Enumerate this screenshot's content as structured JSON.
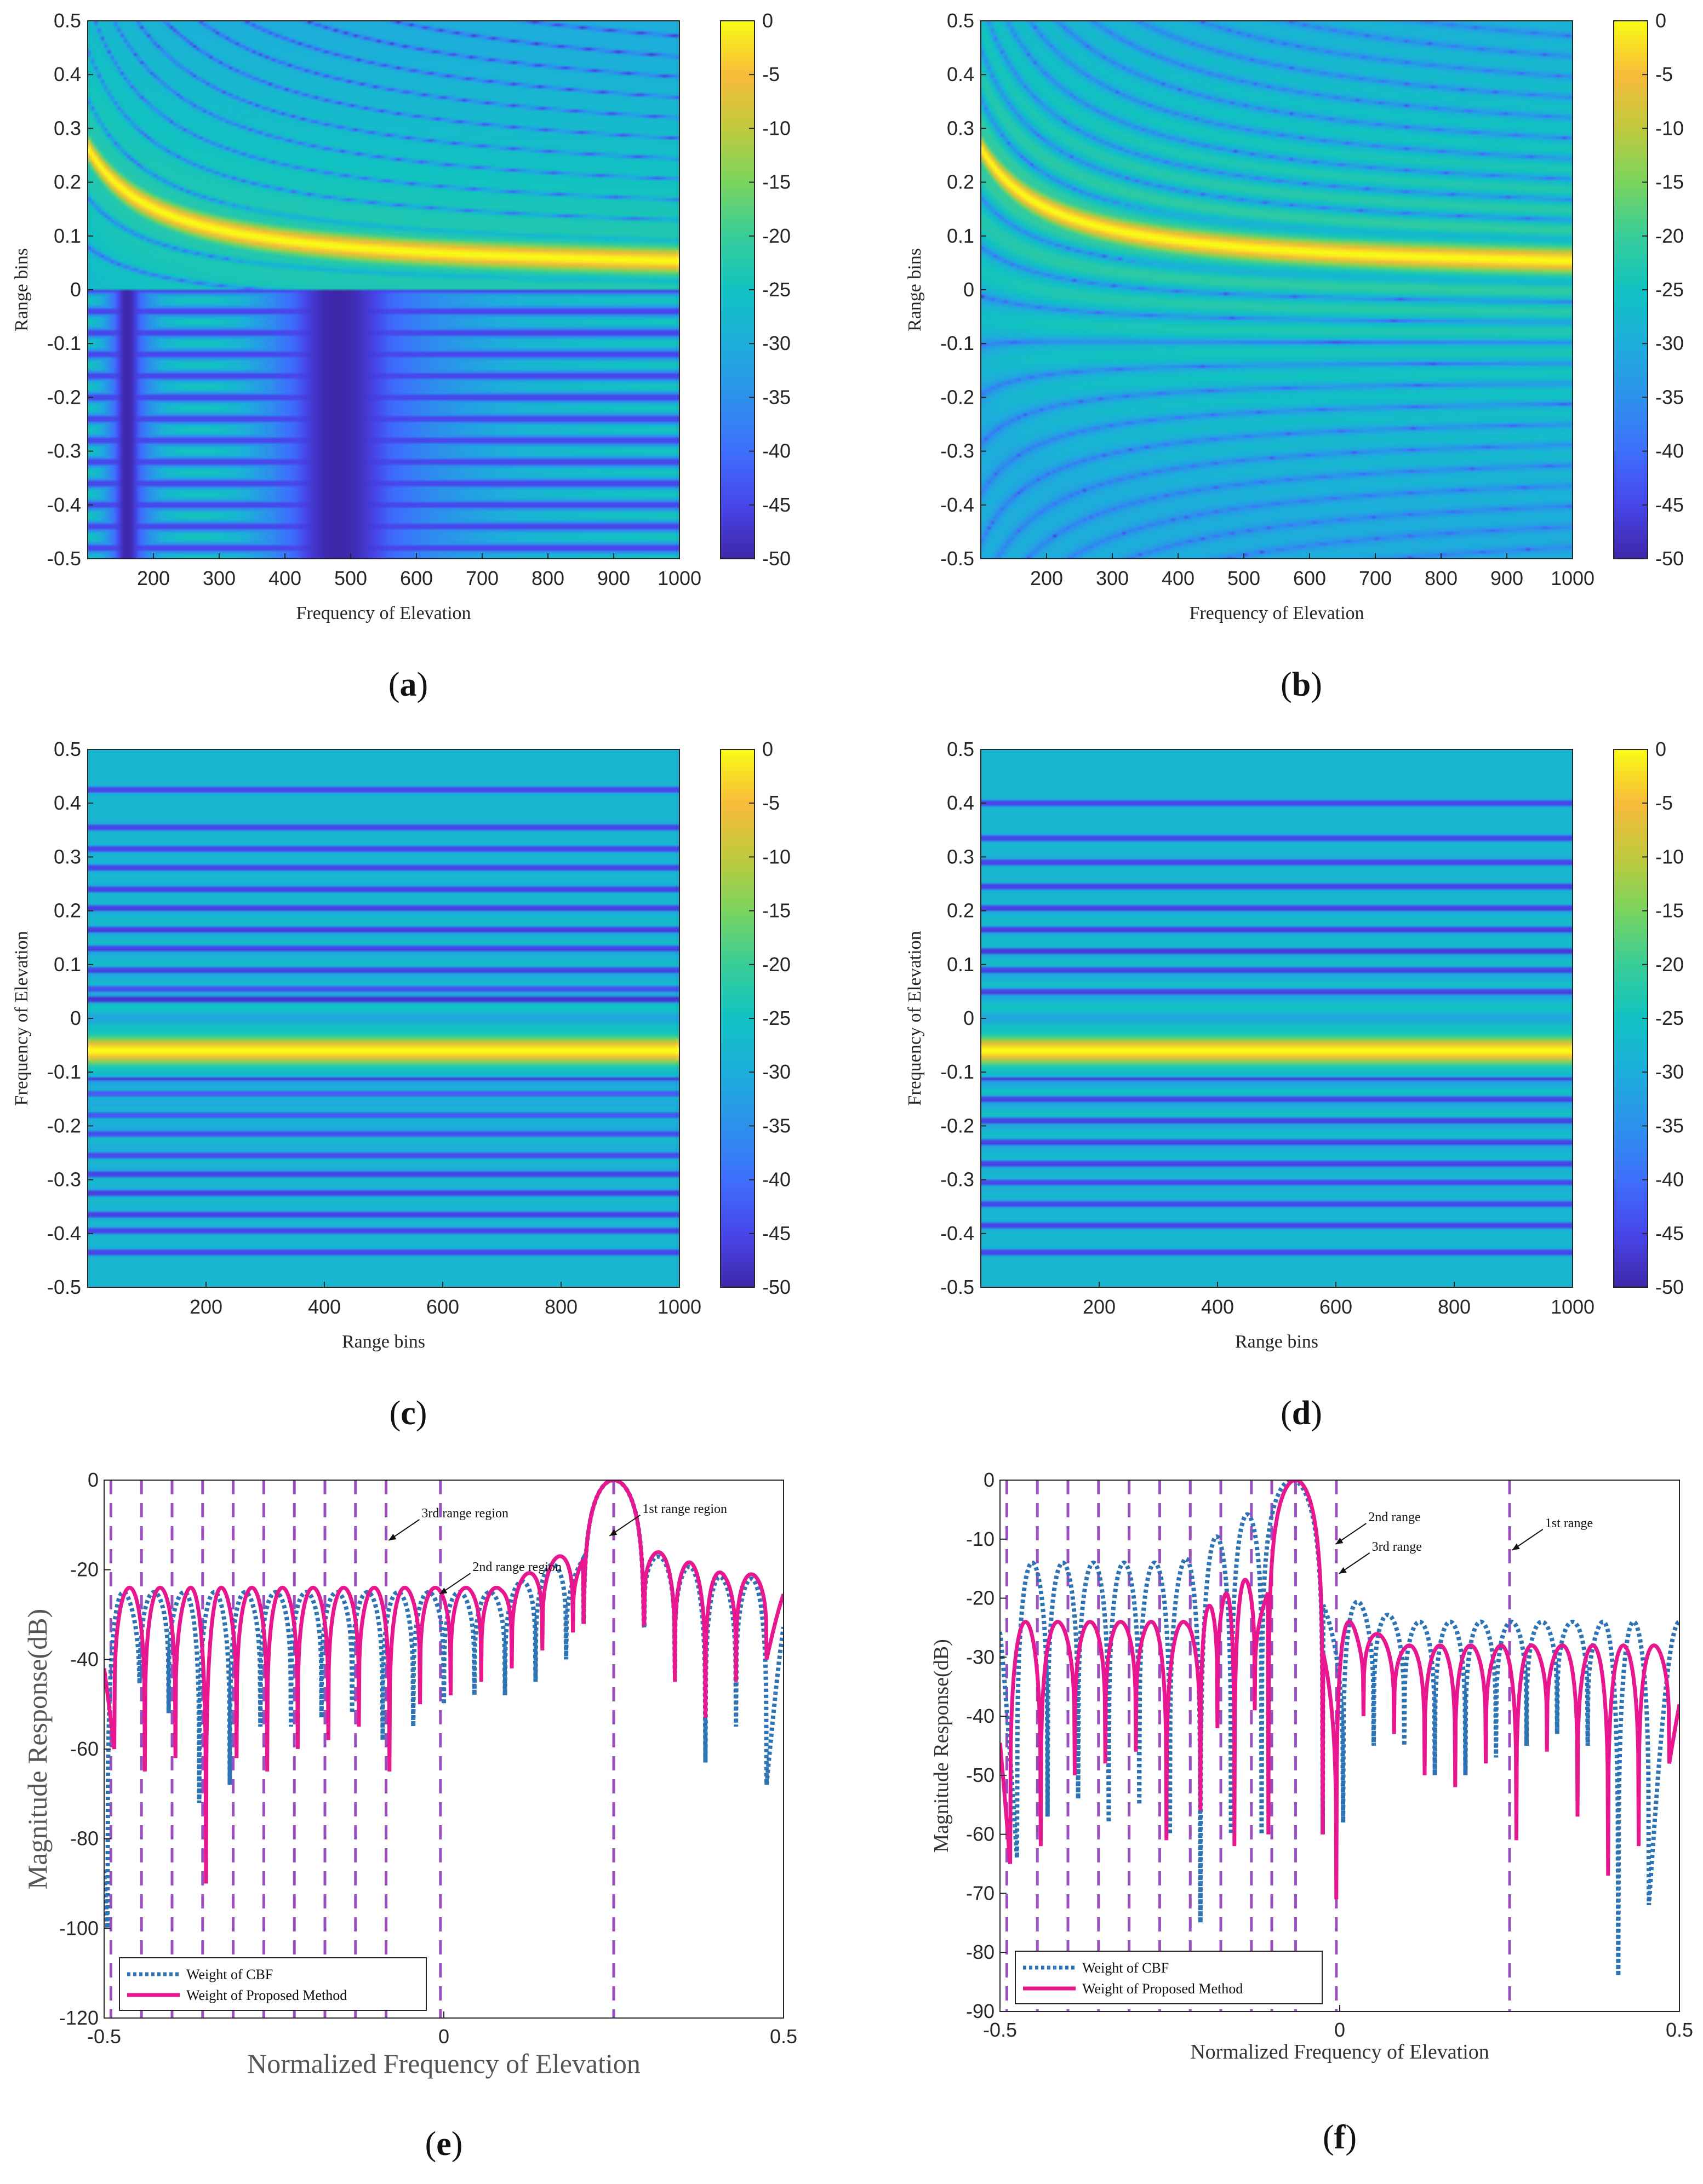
{
  "figure_title": "",
  "chart_data": [
    {
      "id": "a",
      "type": "heatmap",
      "panel_label": "(a)",
      "panel_letter": "a",
      "xlabel": "Frequency of Elevation",
      "ylabel": "Range bins",
      "xlim": [
        100,
        1000
      ],
      "ylim": [
        -0.5,
        0.5
      ],
      "xticks": [
        200,
        300,
        400,
        500,
        600,
        700,
        800,
        900,
        1000
      ],
      "yticks": [
        -0.5,
        -0.4,
        -0.3,
        -0.2,
        -0.1,
        0,
        0.1,
        0.2,
        0.3,
        0.4,
        0.5
      ],
      "colorbar": {
        "min": -50,
        "max": 0,
        "ticks": [
          0,
          -5,
          -10,
          -15,
          -20,
          -25,
          -30,
          -35,
          -40,
          -45,
          -50
        ]
      },
      "mainlobe": "hyperbolic yellow ridge approaching 0.03 for large x",
      "pattern": "hyperbolic sidelobe curves above 0; checkerboard grid below 0"
    },
    {
      "id": "b",
      "type": "heatmap",
      "panel_label": "(b)",
      "panel_letter": "b",
      "xlabel": "Frequency of Elevation",
      "ylabel": "Range bins",
      "xlim": [
        100,
        1000
      ],
      "ylim": [
        -0.5,
        0.5
      ],
      "xticks": [
        200,
        300,
        400,
        500,
        600,
        700,
        800,
        900,
        1000
      ],
      "yticks": [
        -0.5,
        -0.4,
        -0.3,
        -0.2,
        -0.1,
        0,
        0.1,
        0.2,
        0.3,
        0.4,
        0.5
      ],
      "colorbar": {
        "min": -50,
        "max": 0,
        "ticks": [
          0,
          -5,
          -10,
          -15,
          -20,
          -25,
          -30,
          -35,
          -40,
          -45,
          -50
        ]
      },
      "mainlobe": "hyperbolic yellow ridge approaching 0.03 for large x",
      "pattern": "hyperbolic sidelobe curves throughout"
    },
    {
      "id": "c",
      "type": "heatmap",
      "panel_label": "(c)",
      "panel_letter": "c",
      "xlabel": "Range bins",
      "ylabel": "Frequency of Elevation",
      "xlim": [
        0,
        1000
      ],
      "ylim": [
        -0.5,
        0.5
      ],
      "xticks": [
        200,
        400,
        600,
        800,
        1000
      ],
      "yticks": [
        -0.5,
        -0.4,
        -0.3,
        -0.2,
        -0.1,
        0,
        0.1,
        0.2,
        0.3,
        0.4,
        0.5
      ],
      "colorbar": {
        "min": -50,
        "max": 0,
        "ticks": [
          0,
          -5,
          -10,
          -15,
          -20,
          -25,
          -30,
          -35,
          -40,
          -45,
          -50
        ]
      },
      "mainlobe_center": -0.06,
      "null_lines": [
        0.425,
        0.355,
        0.315,
        0.28,
        0.24,
        0.205,
        0.165,
        0.13,
        0.09,
        0.055,
        0.035,
        -0.11,
        -0.14,
        -0.18,
        -0.215,
        -0.255,
        -0.29,
        -0.325,
        -0.365,
        -0.395,
        -0.435
      ]
    },
    {
      "id": "d",
      "type": "heatmap",
      "panel_label": "(d)",
      "panel_letter": "d",
      "xlabel": "Range bins",
      "ylabel": "Frequency of Elevation",
      "xlim": [
        0,
        1000
      ],
      "ylim": [
        -0.5,
        0.5
      ],
      "xticks": [
        200,
        400,
        600,
        800,
        1000
      ],
      "yticks": [
        -0.5,
        -0.4,
        -0.3,
        -0.2,
        -0.1,
        0,
        0.1,
        0.2,
        0.3,
        0.4,
        0.5
      ],
      "colorbar": {
        "min": -50,
        "max": 0,
        "ticks": [
          0,
          -5,
          -10,
          -15,
          -20,
          -25,
          -30,
          -35,
          -40,
          -45,
          -50
        ]
      },
      "mainlobe_center": -0.06,
      "null_lines": [
        0.4,
        0.335,
        0.29,
        0.245,
        0.205,
        0.165,
        0.125,
        0.09,
        0.05,
        -0.11,
        -0.15,
        -0.19,
        -0.23,
        -0.27,
        -0.305,
        -0.345,
        -0.385,
        -0.435
      ]
    },
    {
      "id": "e",
      "type": "line",
      "panel_label": "(e)",
      "panel_letter": "e",
      "xlabel": "Normalized Frequency of Elevation",
      "ylabel": "Magnitude Response(dB)",
      "xlim": [
        -0.5,
        0.5
      ],
      "ylim": [
        -120,
        0
      ],
      "xticks": [
        -0.5,
        0,
        0.5
      ],
      "yticks": [
        0,
        -20,
        -40,
        -60,
        -80,
        -100,
        -120
      ],
      "vlines": [
        -0.49,
        -0.445,
        -0.4,
        -0.355,
        -0.31,
        -0.265,
        -0.22,
        -0.175,
        -0.13,
        -0.085,
        -0.005,
        0.25
      ],
      "series": [
        {
          "name": "Weight of CBF",
          "style": "dotted",
          "color": "#2e74b5",
          "main_center": 0.25,
          "main_peak": 0,
          "main_halfwidth": 0.045,
          "lobe_width": 0.045,
          "sidelobe_left": -25,
          "sidelobe_right": -22,
          "nulls": [
            -0.495,
            -0.448,
            -0.405,
            -0.36,
            -0.315,
            -0.27,
            -0.225,
            -0.18,
            -0.135,
            -0.09,
            -0.045,
            0.0,
            0.045,
            0.09,
            0.135,
            0.18,
            0.295,
            0.34,
            0.385,
            0.43,
            0.475
          ],
          "null_depths": [
            -100,
            -55,
            -52,
            -72,
            -68,
            -55,
            -55,
            -53,
            -52,
            -58,
            -55,
            -50,
            -48,
            -48,
            -45,
            -40,
            -33,
            -43,
            -63,
            -55,
            -68
          ]
        },
        {
          "name": "Weight of Proposed Method",
          "style": "solid",
          "color": "#e8168f",
          "main_center": 0.25,
          "main_peak": 0,
          "main_halfwidth": 0.045,
          "lobe_width": 0.045,
          "sidelobe_left": -24,
          "sidelobe_right": -21,
          "nulls": [
            -0.485,
            -0.44,
            -0.395,
            -0.35,
            -0.305,
            -0.26,
            -0.215,
            -0.17,
            -0.125,
            -0.08,
            -0.035,
            0.01,
            0.055,
            0.1,
            0.145,
            0.19,
            0.295,
            0.34,
            0.385,
            0.43,
            0.475
          ],
          "null_depths": [
            -60,
            -65,
            -62,
            -90,
            -62,
            -65,
            -60,
            -58,
            -55,
            -65,
            -50,
            -48,
            -45,
            -42,
            -38,
            -34,
            -32,
            -45,
            -53,
            -45,
            -40
          ]
        }
      ],
      "annotations": [
        {
          "text": "3rd range region",
          "x": -0.065,
          "y": -11
        },
        {
          "text": "2nd range region",
          "x": 0.01,
          "y": -23
        },
        {
          "text": "1st range region",
          "x": 0.26,
          "y": -10
        }
      ]
    },
    {
      "id": "f",
      "type": "line",
      "panel_label": "(f)",
      "panel_letter": "f",
      "xlabel": "Normalized Frequency of Elevation",
      "ylabel": "Magnitude Response(dB)",
      "xlim": [
        -0.5,
        0.5
      ],
      "ylim": [
        -90,
        0
      ],
      "xticks": [
        -0.5,
        0,
        0.5
      ],
      "yticks": [
        0,
        -10,
        -20,
        -30,
        -40,
        -50,
        -60,
        -70,
        -80,
        -90
      ],
      "vlines": [
        -0.49,
        -0.445,
        -0.4,
        -0.355,
        -0.31,
        -0.265,
        -0.22,
        -0.175,
        -0.13,
        -0.1,
        -0.065,
        -0.005,
        0.25
      ],
      "series": [
        {
          "name": "Weight of CBF",
          "style": "dotted",
          "color": "#2e74b5",
          "main_center": -0.07,
          "main_peak": 0,
          "main_halfwidth": 0.045,
          "lobe_width": 0.045,
          "sidelobe_left": -14,
          "sidelobe_right": -24,
          "nulls": [
            -0.475,
            -0.43,
            -0.385,
            -0.34,
            -0.295,
            -0.25,
            -0.205,
            -0.16,
            -0.115,
            0.005,
            0.05,
            0.095,
            0.14,
            0.185,
            0.23,
            0.275,
            0.32,
            0.365,
            0.41,
            0.455
          ],
          "null_depths": [
            -64,
            -57,
            -54,
            -58,
            -55,
            -60,
            -75,
            -60,
            -40,
            -58,
            -45,
            -45,
            -50,
            -50,
            -47,
            -45,
            -43,
            -45,
            -84,
            -72
          ]
        },
        {
          "name": "Weight of Proposed Method",
          "style": "solid",
          "color": "#e8168f",
          "main_center": -0.065,
          "main_peak": 0,
          "main_halfwidth": 0.04,
          "lobe_width": 0.045,
          "sidelobe_left": -24,
          "sidelobe_right": -28,
          "nulls": [
            -0.485,
            -0.44,
            -0.39,
            -0.345,
            -0.3,
            -0.255,
            -0.205,
            -0.18,
            -0.155,
            -0.125,
            -0.005,
            0.035,
            0.08,
            0.125,
            0.17,
            0.215,
            0.26,
            0.305,
            0.35,
            0.395,
            0.44,
            0.485
          ],
          "null_depths": [
            -65,
            -62,
            -50,
            -48,
            -46,
            -61,
            -56,
            -42,
            -62,
            -39,
            -71,
            -40,
            -43,
            -50,
            -52,
            -48,
            -61,
            -46,
            -57,
            -67,
            -62,
            -48
          ]
        }
      ],
      "annotations": [
        {
          "text": "2nd range",
          "x": 0.01,
          "y": -9
        },
        {
          "text": "3rd range",
          "x": 0.015,
          "y": -14
        },
        {
          "text": "1st range",
          "x": 0.27,
          "y": -10
        }
      ]
    }
  ]
}
